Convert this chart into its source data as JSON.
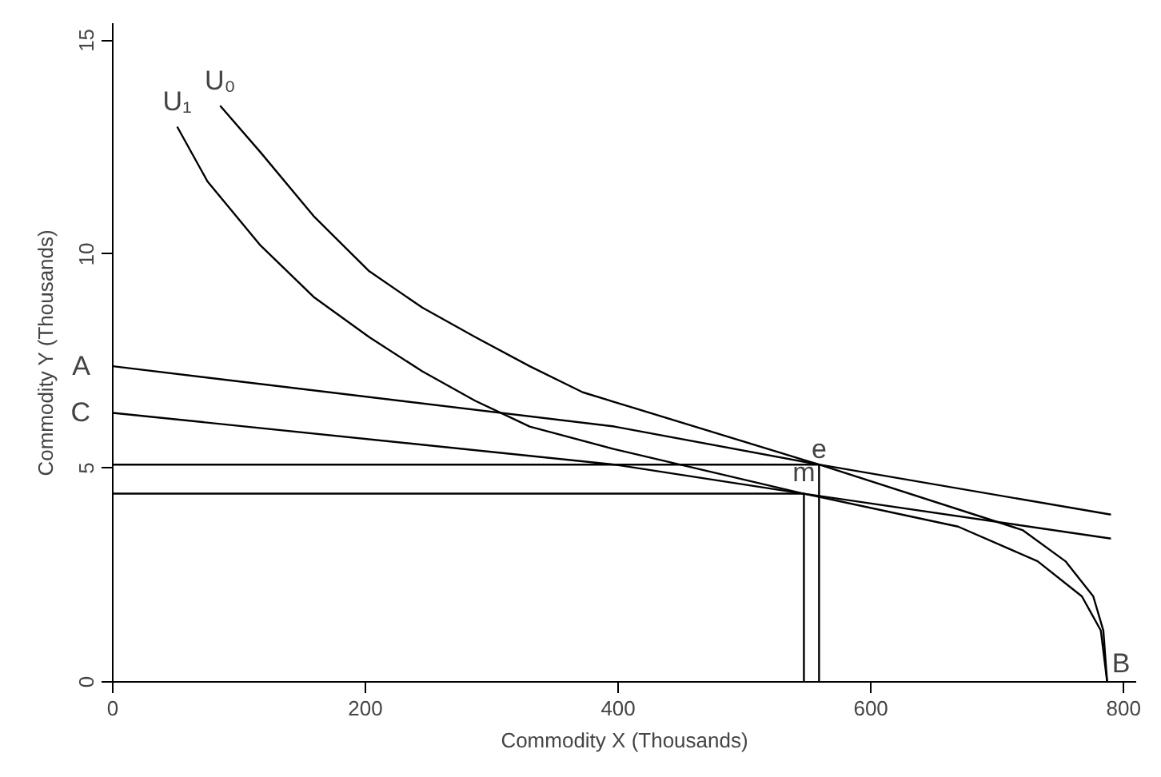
{
  "chart_data": {
    "type": "line",
    "xlabel": "Commodity X (Thousands)",
    "ylabel": "Commodity Y (Thousands)",
    "xlim": [
      0,
      810
    ],
    "ylim": [
      0,
      15.4
    ],
    "xticks": [
      0,
      200,
      400,
      600,
      800
    ],
    "yticks": [
      0,
      5,
      10,
      15
    ],
    "grid": false,
    "legend": false,
    "marker": "none",
    "line_style": "solid",
    "series": [
      {
        "name": "U₀",
        "color": "#000000",
        "x": [
          85,
          117,
          159,
          203,
          245,
          287,
          330,
          372,
          559,
          720,
          754,
          776,
          784,
          787
        ],
        "values": [
          13.47,
          12.38,
          10.89,
          9.6,
          8.75,
          8.06,
          7.38,
          6.77,
          5.08,
          3.55,
          2.82,
          2.0,
          1.2,
          0
        ]
      },
      {
        "name": "U₁",
        "color": "#000000",
        "x": [
          51,
          75,
          117,
          159,
          203,
          245,
          287,
          330,
          397,
          547,
          669,
          732,
          767,
          782,
          787
        ],
        "values": [
          12.98,
          11.7,
          10.2,
          9.0,
          8.06,
          7.26,
          6.57,
          5.97,
          5.44,
          4.4,
          3.63,
          2.82,
          2.0,
          1.2,
          0
        ]
      },
      {
        "color": "#000000",
        "x": [
          0,
          397,
          559,
          790
        ],
        "values": [
          7.38,
          5.97,
          5.08,
          3.91
        ]
      },
      {
        "color": "#000000",
        "x": [
          0,
          397,
          547,
          790
        ],
        "values": [
          6.29,
          5.08,
          4.4,
          3.35
        ]
      },
      {
        "color": "#000000",
        "x": [
          0,
          559,
          559
        ],
        "values": [
          5.08,
          5.08,
          0
        ]
      },
      {
        "color": "#000000",
        "x": [
          0,
          547,
          547
        ],
        "values": [
          4.4,
          4.4,
          0
        ]
      }
    ],
    "annotations": [
      {
        "text": "A",
        "x": 0,
        "y": 7.38
      },
      {
        "text": "C",
        "x": 0,
        "y": 6.29
      },
      {
        "text": "e",
        "x": 559,
        "y": 5.08
      },
      {
        "text": "m",
        "x": 547,
        "y": 4.4
      },
      {
        "text": "B",
        "x": 787,
        "y": 0
      }
    ]
  }
}
